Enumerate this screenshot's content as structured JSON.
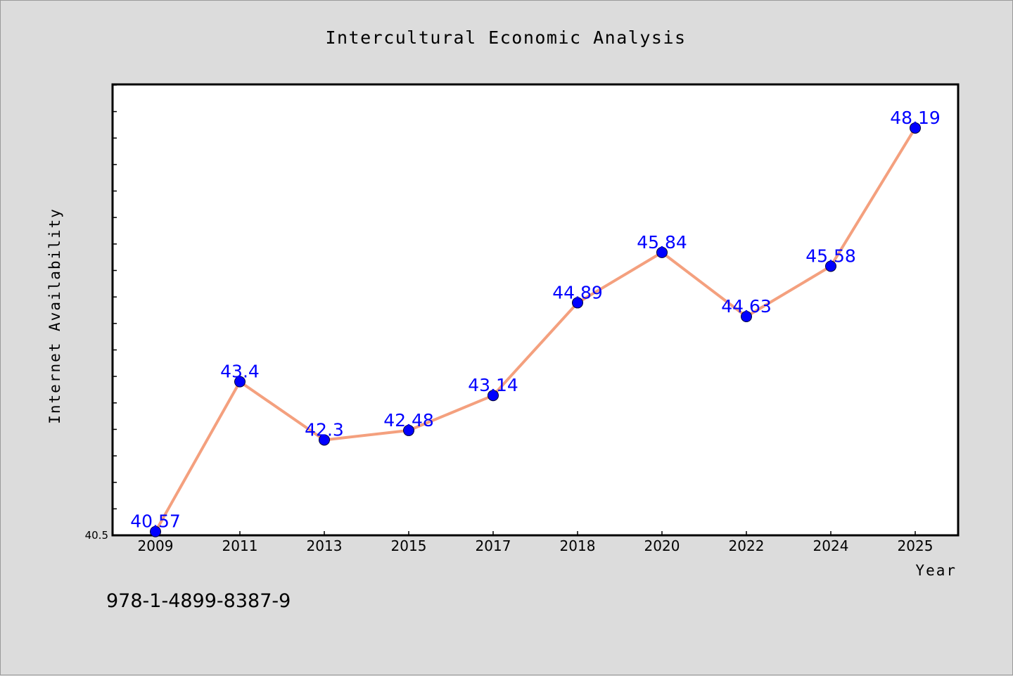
{
  "chart_data": {
    "type": "line",
    "title": "Intercultural Economic Analysis",
    "xlabel": "Year",
    "ylabel": "Internet Availability",
    "categories": [
      "2009",
      "2011",
      "2013",
      "2015",
      "2017",
      "2018",
      "2020",
      "2022",
      "2024",
      "2025"
    ],
    "series": [
      {
        "values": [
          40.57,
          43.4,
          42.3,
          42.48,
          43.14,
          44.89,
          45.84,
          44.63,
          45.58,
          48.19
        ],
        "labels": [
          "40.57",
          "43.4",
          "42.3",
          "42.48",
          "43.14",
          "44.89",
          "45.84",
          "44.63",
          "45.58",
          "48.19"
        ],
        "line_color": "#f4a07e",
        "marker_color": "#0000ff"
      }
    ],
    "ylim": [
      40.5,
      49.0
    ],
    "yticks_labeled": [
      "40.5"
    ],
    "grid": false,
    "legend": "none",
    "background_color": "#dcdcdc",
    "plot_background_color": "#ffffff"
  },
  "footer": {
    "isbn": "978-1-4899-8387-9"
  }
}
